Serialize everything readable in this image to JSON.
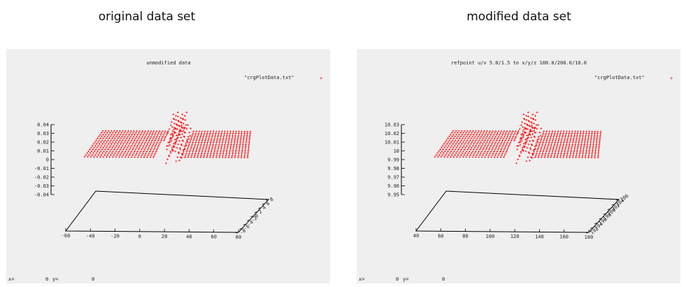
{
  "captions": {
    "left": "original data set",
    "right": "modified data set"
  },
  "chart_data": [
    {
      "type": "scatter",
      "title": "unmodified data",
      "legend": {
        "label": "\"crgPlotData.txt\"",
        "marker": "+",
        "color": "#ff0000",
        "position": "top-right"
      },
      "z_ticks": [
        "0.04",
        "0.03",
        "0.02",
        "0.01",
        "0",
        "-0.01",
        "-0.02",
        "-0.03",
        "-0.04"
      ],
      "x_ticks": [
        "-60",
        "-40",
        "-20",
        "0",
        "20",
        "40",
        "60",
        "80"
      ],
      "y_ticks": [
        "-8",
        "-6",
        "-4",
        "-2",
        "0",
        "2",
        "4",
        "6",
        "8"
      ],
      "zlim": [
        -0.04,
        0.04
      ],
      "status": {
        "x_label": "x=",
        "x_value": "0",
        "y_label": "y=",
        "y_value": "0"
      }
    },
    {
      "type": "scatter",
      "title": "refpoint u/v 5.0/1.5 to x/y/z 100.0/200.0/10.0",
      "legend": {
        "label": "\"crgPlotData.txt\"",
        "marker": "+",
        "color": "#ff0000",
        "position": "top-right"
      },
      "z_ticks": [
        "10.03",
        "10.02",
        "10.01",
        "10",
        "9.99",
        "9.98",
        "9.97",
        "9.96",
        "9.95"
      ],
      "x_ticks": [
        "40",
        "60",
        "80",
        "100",
        "120",
        "140",
        "160",
        "180"
      ],
      "y_ticks": [
        "192",
        "194",
        "196",
        "198",
        "200",
        "202",
        "204",
        "206"
      ],
      "zlim": [
        9.95,
        10.03
      ],
      "status": {
        "x_label": "x=",
        "x_value": "0",
        "y_label": "y=",
        "y_value": "0"
      }
    }
  ]
}
